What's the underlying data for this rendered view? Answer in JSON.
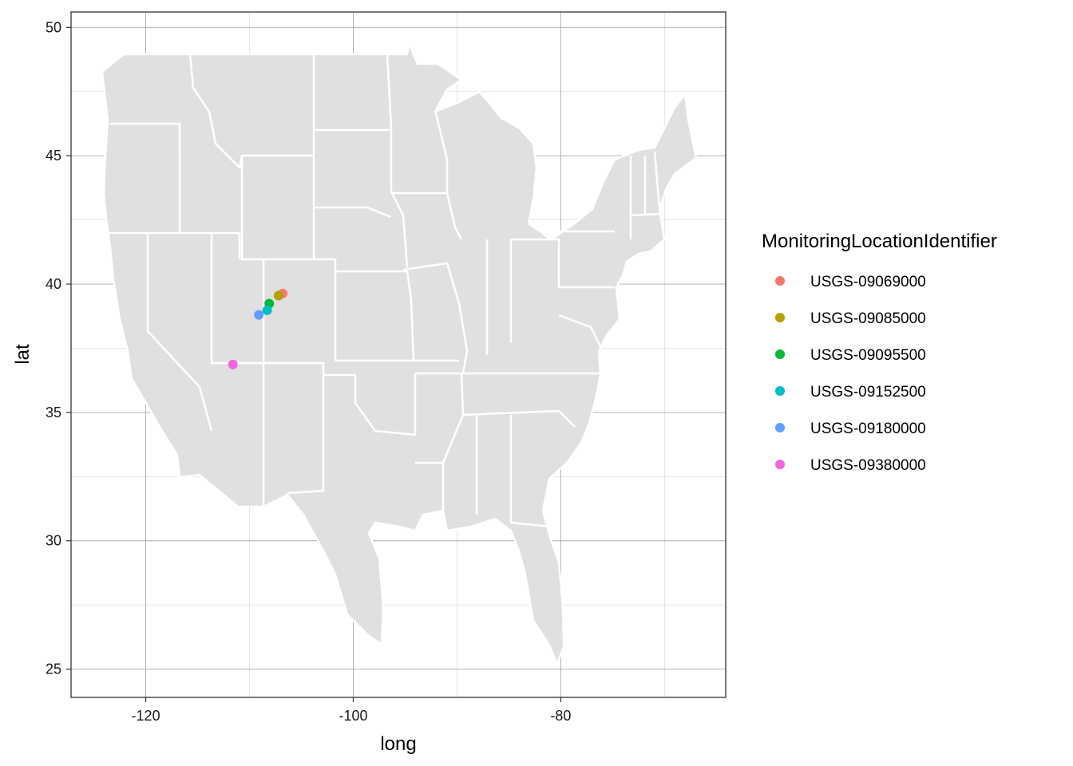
{
  "chart_data": {
    "type": "scatter",
    "xlabel": "long",
    "ylabel": "lat",
    "xlim": [
      -127.2,
      -64.1
    ],
    "ylim": [
      23.9,
      50.6
    ],
    "x_ticks": [
      -120,
      -100,
      -80
    ],
    "y_ticks": [
      25,
      30,
      35,
      40,
      45,
      50
    ],
    "x_tick_labels": [
      "-120",
      "-100",
      "-80"
    ],
    "y_tick_labels": [
      "25",
      "30",
      "35",
      "40",
      "45",
      "50"
    ],
    "grid": true,
    "basemap": "contiguous-united-states-states",
    "legend": {
      "title": "MonitoringLocationIdentifier",
      "placement": "right"
    },
    "series": [
      {
        "name": "USGS-09069000",
        "color": "#F8766D",
        "x": [
          -106.8
        ],
        "y": [
          39.63
        ]
      },
      {
        "name": "USGS-09085000",
        "color": "#B79F00",
        "x": [
          -107.2
        ],
        "y": [
          39.55
        ]
      },
      {
        "name": "USGS-09095500",
        "color": "#00BA38",
        "x": [
          -108.1
        ],
        "y": [
          39.24
        ]
      },
      {
        "name": "USGS-09152500",
        "color": "#00BFC4",
        "x": [
          -108.3
        ],
        "y": [
          38.98
        ]
      },
      {
        "name": "USGS-09180000",
        "color": "#619CFF",
        "x": [
          -109.1
        ],
        "y": [
          38.8
        ]
      },
      {
        "name": "USGS-09380000",
        "color": "#F564E3",
        "x": [
          -111.6
        ],
        "y": [
          36.87
        ]
      }
    ]
  }
}
